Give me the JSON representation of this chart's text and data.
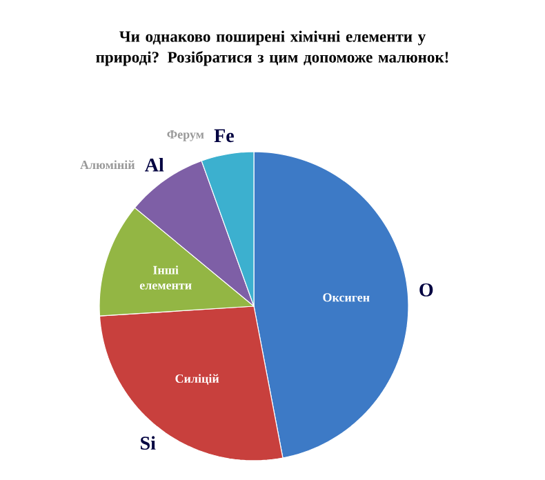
{
  "chart_data": {
    "type": "pie",
    "title": "Чи однаково поширені хімічні елементи у природі? Розібратися з цим допоможе малюнок!",
    "categories": [
      "Оксиген",
      "Силіцій",
      "Інші елементи",
      "Алюміній",
      "Ферум"
    ],
    "values": [
      47,
      27,
      12,
      8.5,
      5.5
    ],
    "colors": [
      "#3d7ac6",
      "#c8403d",
      "#93b644",
      "#7e5fa6",
      "#3cb0cf"
    ],
    "annotations": [
      "O",
      "Si",
      null,
      "Al",
      "Fe"
    ]
  }
}
